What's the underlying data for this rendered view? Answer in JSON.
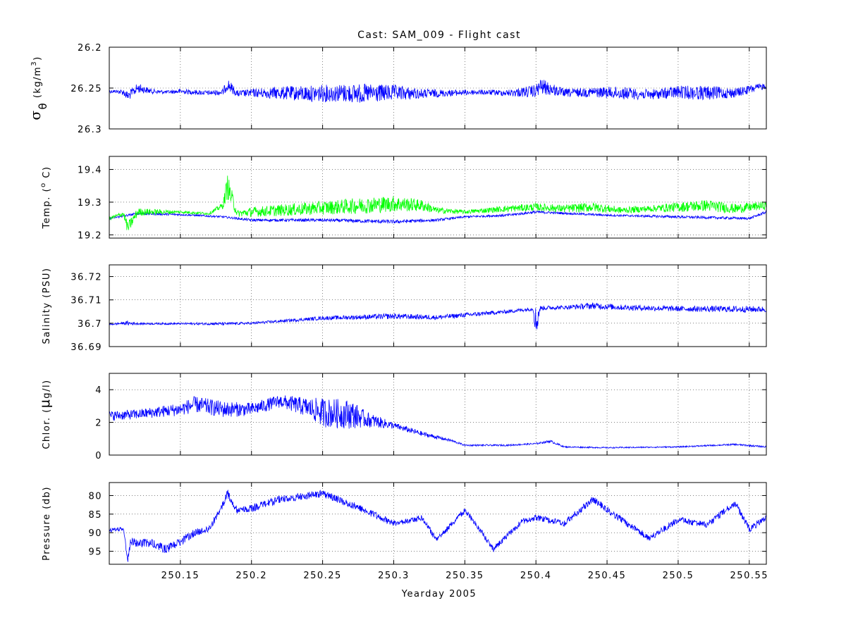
{
  "chart_data": {
    "type": "line",
    "title": "Cast: SAM_009 - Flight cast",
    "xlabel": "Yearday 2005",
    "xlim": [
      250.1,
      250.562
    ],
    "x_ticks": [
      250.15,
      250.2,
      250.25,
      250.3,
      250.35,
      250.4,
      250.45,
      250.5,
      250.55
    ],
    "x_tick_labels": [
      "250.15",
      "250.2",
      "250.25",
      "250.3",
      "250.35",
      "250.4",
      "250.45",
      "250.5",
      "250.55"
    ],
    "grid": true,
    "panels": [
      {
        "id": "sigma",
        "ylabel_symbol": "σ",
        "ylabel_subscript": "θ",
        "ylabel_unit": "(kg/m",
        "ylabel_unit_sup": "3",
        "ylabel_unit_close": ")",
        "ylim": [
          26.2,
          26.3
        ],
        "y_reversed": true,
        "y_ticks": [
          26.2,
          26.25,
          26.3
        ],
        "y_tick_labels": [
          "26.2",
          "26.25",
          "26.3"
        ],
        "series": [
          {
            "color": "#0000ff",
            "x": [
              250.1,
              250.105,
              250.11,
              250.113,
              250.12,
              250.13,
              250.14,
              250.15,
              250.16,
              250.17,
              250.18,
              250.183,
              250.19,
              250.2,
              250.22,
              250.24,
              250.26,
              250.28,
              250.3,
              250.32,
              250.34,
              250.36,
              250.38,
              250.4,
              250.403,
              250.42,
              250.44,
              250.46,
              250.48,
              250.5,
              250.52,
              250.54,
              250.562
            ],
            "y": [
              26.254,
              26.254,
              26.255,
              26.26,
              26.25,
              26.254,
              26.255,
              26.254,
              26.255,
              26.256,
              26.255,
              26.245,
              26.257,
              26.256,
              26.256,
              26.257,
              26.256,
              26.257,
              26.256,
              26.257,
              26.256,
              26.255,
              26.256,
              26.254,
              26.248,
              26.256,
              26.255,
              26.256,
              26.258,
              26.255,
              26.256,
              26.256,
              26.247
            ],
            "noise": [
              0.002,
              0.002,
              0.004,
              0.006,
              0.006,
              0.003,
              0.002,
              0.003,
              0.003,
              0.003,
              0.004,
              0.008,
              0.004,
              0.005,
              0.008,
              0.01,
              0.011,
              0.012,
              0.01,
              0.006,
              0.004,
              0.003,
              0.004,
              0.008,
              0.01,
              0.005,
              0.006,
              0.008,
              0.006,
              0.008,
              0.009,
              0.006,
              0.004
            ]
          }
        ]
      },
      {
        "id": "temp",
        "ylabel": "Temp. (",
        "ylabel_sup": "o",
        "ylabel_tail": " C)",
        "ylim": [
          19.19,
          19.44
        ],
        "y_reversed": false,
        "y_ticks": [
          19.2,
          19.3,
          19.4
        ],
        "y_tick_labels": [
          "19.2",
          "19.3",
          "19.4"
        ],
        "series": [
          {
            "color": "#0000ff",
            "x": [
              250.1,
              250.12,
              250.15,
              250.18,
              250.2,
              250.25,
              250.3,
              250.33,
              250.35,
              250.38,
              250.4,
              250.45,
              250.5,
              250.55,
              250.562
            ],
            "y": [
              19.25,
              19.265,
              19.262,
              19.255,
              19.245,
              19.245,
              19.24,
              19.245,
              19.255,
              19.26,
              19.27,
              19.26,
              19.255,
              19.25,
              19.27
            ],
            "noise": [
              0.003,
              0.004,
              0.003,
              0.003,
              0.004,
              0.005,
              0.006,
              0.004,
              0.003,
              0.004,
              0.004,
              0.003,
              0.004,
              0.004,
              0.004
            ]
          },
          {
            "color": "#00ff00",
            "x": [
              250.1,
              250.11,
              250.113,
              250.12,
              250.15,
              250.17,
              250.18,
              250.183,
              250.19,
              250.2,
              250.22,
              250.24,
              250.26,
              250.28,
              250.3,
              250.32,
              250.33,
              250.35,
              250.38,
              250.4,
              250.42,
              250.44,
              250.46,
              250.48,
              250.5,
              250.52,
              250.54,
              250.562
            ],
            "y": [
              19.25,
              19.265,
              19.22,
              19.27,
              19.27,
              19.265,
              19.29,
              19.35,
              19.265,
              19.27,
              19.275,
              19.28,
              19.285,
              19.29,
              19.295,
              19.29,
              19.275,
              19.27,
              19.28,
              19.285,
              19.28,
              19.285,
              19.275,
              19.28,
              19.285,
              19.29,
              19.28,
              19.29
            ],
            "noise": [
              0.005,
              0.008,
              0.02,
              0.012,
              0.004,
              0.004,
              0.01,
              0.04,
              0.01,
              0.015,
              0.018,
              0.02,
              0.022,
              0.025,
              0.025,
              0.018,
              0.01,
              0.006,
              0.01,
              0.012,
              0.012,
              0.015,
              0.01,
              0.01,
              0.015,
              0.018,
              0.015,
              0.012
            ]
          }
        ]
      },
      {
        "id": "salinity",
        "ylabel": "Salinity (PSU)",
        "ylim": [
          36.69,
          36.725
        ],
        "y_reversed": false,
        "y_ticks": [
          36.69,
          36.7,
          36.71,
          36.72
        ],
        "y_tick_labels": [
          "36.69",
          "36.7",
          "36.71",
          "36.72"
        ],
        "series": [
          {
            "color": "#0000ff",
            "x": [
              250.1,
              250.11,
              250.113,
              250.12,
              250.15,
              250.18,
              250.2,
              250.25,
              250.3,
              250.33,
              250.35,
              250.38,
              250.398,
              250.4,
              250.403,
              250.42,
              250.44,
              250.46,
              250.5,
              250.55,
              250.562
            ],
            "y": [
              36.6995,
              36.7,
              36.7,
              36.6998,
              36.6998,
              36.6998,
              36.7,
              36.7022,
              36.703,
              36.7025,
              36.7035,
              36.705,
              36.7062,
              36.7,
              36.7065,
              36.7068,
              36.7075,
              36.7068,
              36.7062,
              36.706,
              36.706
            ],
            "noise": [
              0.0004,
              0.0005,
              0.001,
              0.0004,
              0.0004,
              0.0006,
              0.0005,
              0.0008,
              0.0012,
              0.001,
              0.001,
              0.0008,
              0.0008,
              0.008,
              0.001,
              0.0008,
              0.0014,
              0.0012,
              0.0012,
              0.0014,
              0.0012
            ]
          }
        ]
      },
      {
        "id": "chlor",
        "ylabel": "Chlor. (",
        "ylabel_mu": "μ",
        "ylabel_tail": "g/l)",
        "ylim": [
          0,
          5
        ],
        "y_reversed": false,
        "y_ticks": [
          0,
          2,
          4
        ],
        "y_tick_labels": [
          "0",
          "2",
          "4"
        ],
        "series": [
          {
            "color": "#0000ff",
            "x": [
              250.1,
              250.12,
              250.15,
              250.16,
              250.18,
              250.2,
              250.22,
              250.24,
              250.25,
              250.27,
              250.28,
              250.3,
              250.32,
              250.34,
              250.35,
              250.38,
              250.4,
              250.41,
              250.42,
              250.45,
              250.5,
              250.54,
              250.562
            ],
            "y": [
              2.4,
              2.5,
              2.8,
              3.1,
              2.8,
              2.8,
              3.3,
              2.9,
              2.6,
              2.5,
              2.2,
              1.8,
              1.3,
              0.9,
              0.6,
              0.6,
              0.7,
              0.85,
              0.5,
              0.45,
              0.5,
              0.65,
              0.5
            ],
            "noise": [
              0.3,
              0.3,
              0.4,
              0.5,
              0.5,
              0.4,
              0.4,
              0.6,
              0.9,
              0.9,
              0.5,
              0.2,
              0.15,
              0.08,
              0.05,
              0.05,
              0.05,
              0.08,
              0.04,
              0.04,
              0.04,
              0.05,
              0.05
            ]
          }
        ]
      },
      {
        "id": "pressure",
        "ylabel": "Pressure (db)",
        "ylim": [
          76.5,
          98.5
        ],
        "y_reversed": true,
        "y_ticks": [
          80,
          85,
          90,
          95
        ],
        "y_tick_labels": [
          "80",
          "85",
          "90",
          "95"
        ],
        "series": [
          {
            "color": "#0000ff",
            "x": [
              250.1,
              250.11,
              250.113,
              250.115,
              250.13,
              250.14,
              250.15,
              250.16,
              250.17,
              250.178,
              250.183,
              250.19,
              250.2,
              250.22,
              250.25,
              250.28,
              250.3,
              250.32,
              250.33,
              250.35,
              250.36,
              250.37,
              250.39,
              250.4,
              250.42,
              250.44,
              250.46,
              250.48,
              250.5,
              250.52,
              250.54,
              250.55,
              250.562
            ],
            "y": [
              89.5,
              88.8,
              97.5,
              92.5,
              93,
              94.5,
              92.5,
              90,
              89,
              84,
              79.5,
              84,
              83.5,
              81,
              79.5,
              84,
              87.5,
              86,
              92,
              84,
              89,
              94.5,
              87,
              86,
              87.5,
              81,
              86.5,
              91.5,
              86.5,
              88,
              82,
              89,
              86
            ],
            "noise": [
              0.6,
              0.6,
              1.0,
              1.2,
              1.2,
              1.2,
              1.2,
              1.0,
              1.0,
              1.0,
              1.2,
              1.0,
              1.0,
              1.0,
              1.0,
              1.0,
              0.8,
              0.8,
              0.8,
              0.8,
              0.8,
              0.8,
              0.8,
              0.8,
              0.9,
              0.9,
              0.9,
              0.9,
              0.9,
              0.9,
              0.9,
              0.9,
              0.9
            ]
          }
        ]
      }
    ]
  }
}
